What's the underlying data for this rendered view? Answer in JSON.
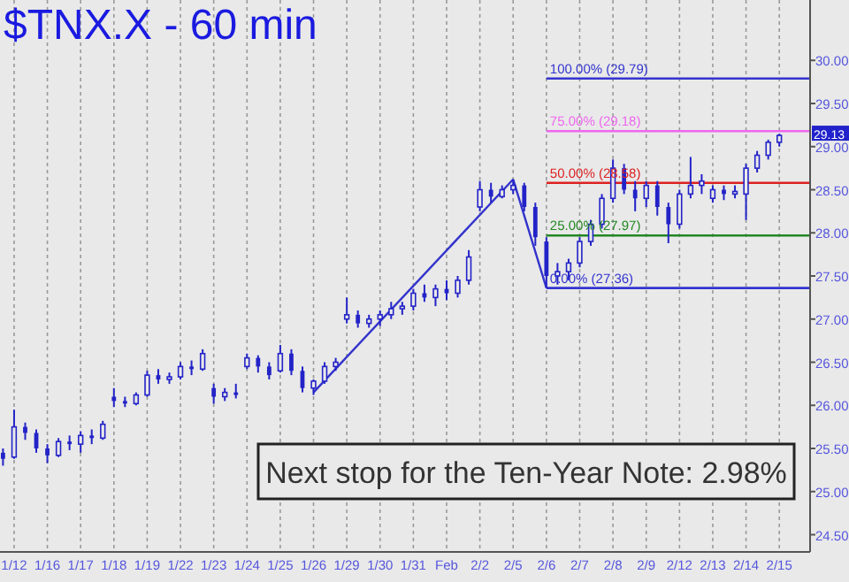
{
  "chart_data": {
    "type": "candlestick",
    "title": "$TNX.X - 60 min",
    "color": "#2323c8",
    "categories": [
      null,
      "1/12",
      null,
      null,
      "1/16",
      null,
      null,
      "1/17",
      null,
      null,
      "1/18",
      null,
      null,
      "1/19",
      null,
      null,
      "1/22",
      null,
      null,
      "1/23",
      null,
      null,
      "1/24",
      null,
      null,
      "1/25",
      null,
      null,
      "1/26",
      null,
      null,
      "1/29",
      null,
      null,
      "1/30",
      null,
      null,
      "1/31",
      null,
      null,
      "Feb",
      null,
      null,
      "2/2",
      null,
      null,
      "2/5",
      null,
      null,
      "2/6",
      null,
      null,
      "2/7",
      null,
      null,
      "2/8",
      null,
      null,
      "2/9",
      null,
      null,
      "2/12",
      null,
      null,
      "2/13",
      null,
      null,
      "2/14",
      null,
      null,
      "2/15"
    ],
    "ohlc": [
      [
        25.45,
        25.5,
        25.3,
        25.38
      ],
      [
        25.4,
        25.95,
        25.38,
        25.75
      ],
      [
        25.75,
        25.8,
        25.6,
        25.68
      ],
      [
        25.68,
        25.72,
        25.45,
        25.5
      ],
      [
        25.5,
        25.55,
        25.33,
        25.42
      ],
      [
        25.42,
        25.62,
        25.4,
        25.58
      ],
      [
        25.58,
        25.65,
        25.48,
        25.55
      ],
      [
        25.55,
        25.7,
        25.45,
        25.65
      ],
      [
        25.65,
        25.72,
        25.55,
        25.62
      ],
      [
        25.62,
        25.82,
        25.6,
        25.78
      ],
      [
        26.1,
        26.2,
        25.98,
        26.05
      ],
      [
        26.05,
        26.1,
        25.98,
        26.02
      ],
      [
        26.02,
        26.15,
        26.0,
        26.12
      ],
      [
        26.12,
        26.4,
        26.1,
        26.35
      ],
      [
        26.35,
        26.42,
        26.25,
        26.3
      ],
      [
        26.3,
        26.38,
        26.25,
        26.33
      ],
      [
        26.33,
        26.5,
        26.3,
        26.45
      ],
      [
        26.45,
        26.52,
        26.35,
        26.42
      ],
      [
        26.42,
        26.65,
        26.4,
        26.6
      ],
      [
        26.2,
        26.25,
        26.02,
        26.1
      ],
      [
        26.1,
        26.2,
        26.05,
        26.15
      ],
      [
        26.15,
        26.25,
        26.08,
        26.12
      ],
      [
        26.45,
        26.6,
        26.42,
        26.55
      ],
      [
        26.55,
        26.58,
        26.38,
        26.45
      ],
      [
        26.45,
        26.5,
        26.3,
        26.35
      ],
      [
        26.4,
        26.7,
        26.38,
        26.6
      ],
      [
        26.6,
        26.65,
        26.35,
        26.4
      ],
      [
        26.4,
        26.45,
        26.15,
        26.2
      ],
      [
        26.2,
        26.3,
        26.12,
        26.28
      ],
      [
        26.28,
        26.5,
        26.25,
        26.45
      ],
      [
        26.45,
        26.55,
        26.4,
        26.5
      ],
      [
        27.0,
        27.25,
        26.95,
        27.05
      ],
      [
        27.05,
        27.1,
        26.9,
        26.95
      ],
      [
        26.95,
        27.05,
        26.9,
        27.0
      ],
      [
        27.0,
        27.1,
        26.92,
        27.05
      ],
      [
        27.05,
        27.2,
        27.0,
        27.12
      ],
      [
        27.12,
        27.2,
        27.05,
        27.15
      ],
      [
        27.15,
        27.35,
        27.1,
        27.3
      ],
      [
        27.3,
        27.4,
        27.2,
        27.25
      ],
      [
        27.25,
        27.4,
        27.15,
        27.35
      ],
      [
        27.35,
        27.45,
        27.22,
        27.3
      ],
      [
        27.3,
        27.5,
        27.25,
        27.45
      ],
      [
        27.45,
        27.8,
        27.4,
        27.72
      ],
      [
        28.3,
        28.6,
        28.25,
        28.5
      ],
      [
        28.5,
        28.58,
        28.35,
        28.42
      ],
      [
        28.42,
        28.55,
        28.4,
        28.5
      ],
      [
        28.5,
        28.62,
        28.45,
        28.55
      ],
      [
        28.55,
        28.58,
        28.25,
        28.3
      ],
      [
        28.3,
        28.35,
        27.85,
        27.95
      ],
      [
        27.9,
        27.95,
        27.36,
        27.5
      ],
      [
        27.5,
        27.65,
        27.4,
        27.55
      ],
      [
        27.55,
        27.7,
        27.45,
        27.65
      ],
      [
        27.65,
        27.95,
        27.6,
        27.9
      ],
      [
        27.9,
        28.15,
        27.85,
        28.1
      ],
      [
        28.1,
        28.45,
        28.05,
        28.4
      ],
      [
        28.4,
        28.85,
        28.35,
        28.75
      ],
      [
        28.75,
        28.8,
        28.45,
        28.5
      ],
      [
        28.5,
        28.6,
        28.25,
        28.4
      ],
      [
        28.4,
        28.6,
        28.3,
        28.55
      ],
      [
        28.55,
        28.6,
        28.2,
        28.3
      ],
      [
        28.3,
        28.35,
        27.88,
        28.1
      ],
      [
        28.1,
        28.5,
        28.05,
        28.45
      ],
      [
        28.45,
        28.88,
        28.4,
        28.55
      ],
      [
        28.55,
        28.68,
        28.45,
        28.6
      ],
      [
        28.4,
        28.55,
        28.35,
        28.5
      ],
      [
        28.5,
        28.55,
        28.38,
        28.45
      ],
      [
        28.45,
        28.55,
        28.4,
        28.48
      ],
      [
        28.45,
        28.8,
        28.15,
        28.75
      ],
      [
        28.75,
        28.95,
        28.7,
        28.9
      ],
      [
        28.9,
        29.08,
        28.85,
        29.05
      ],
      [
        29.05,
        29.15,
        29.0,
        29.13
      ]
    ],
    "series": [
      {
        "type": "line",
        "color": "#3333cc",
        "x": [
          "1/26",
          "2/5"
        ],
        "values": [
          26.15,
          28.62
        ]
      },
      {
        "type": "line",
        "color": "#3333cc",
        "x": [
          "2/5",
          "2/6"
        ],
        "values": [
          28.62,
          27.36
        ]
      }
    ],
    "ylim": [
      24.3,
      30.7
    ],
    "yticks": [
      {
        "value": 24.5,
        "label": "24.50"
      },
      {
        "value": 25,
        "label": "25.00"
      },
      {
        "value": 25.5,
        "label": "25.50"
      },
      {
        "value": 26,
        "label": "26.00"
      },
      {
        "value": 26.5,
        "label": "26.50"
      },
      {
        "value": 27,
        "label": "27.00"
      },
      {
        "value": 27.5,
        "label": "27.50"
      },
      {
        "value": 28,
        "label": "28.00"
      },
      {
        "value": 28.5,
        "label": "28.50"
      },
      {
        "value": 29,
        "label": "29.00"
      },
      {
        "value": 29.5,
        "label": "29.50"
      },
      {
        "value": 30,
        "label": "30.00"
      }
    ],
    "grid": "x",
    "ref_lines": [
      {
        "axis": "y",
        "value": 29.79,
        "label": "100.00% (29.79)",
        "color": "#3434d0"
      },
      {
        "axis": "y",
        "value": 29.18,
        "label": "75.00% (29.18)",
        "color": "#ee66ee"
      },
      {
        "axis": "y",
        "value": 28.58,
        "label": "50.00% (28.58)",
        "color": "#dd2222"
      },
      {
        "axis": "y",
        "value": 27.97,
        "label": "25.00% (27.97)",
        "color": "#228822"
      },
      {
        "axis": "y",
        "value": 27.36,
        "label": "0.00% (27.36)",
        "color": "#3434d0"
      }
    ],
    "annotations": [
      "29.13",
      "Next stop for the Ten-Year Note: 2.98%"
    ]
  }
}
